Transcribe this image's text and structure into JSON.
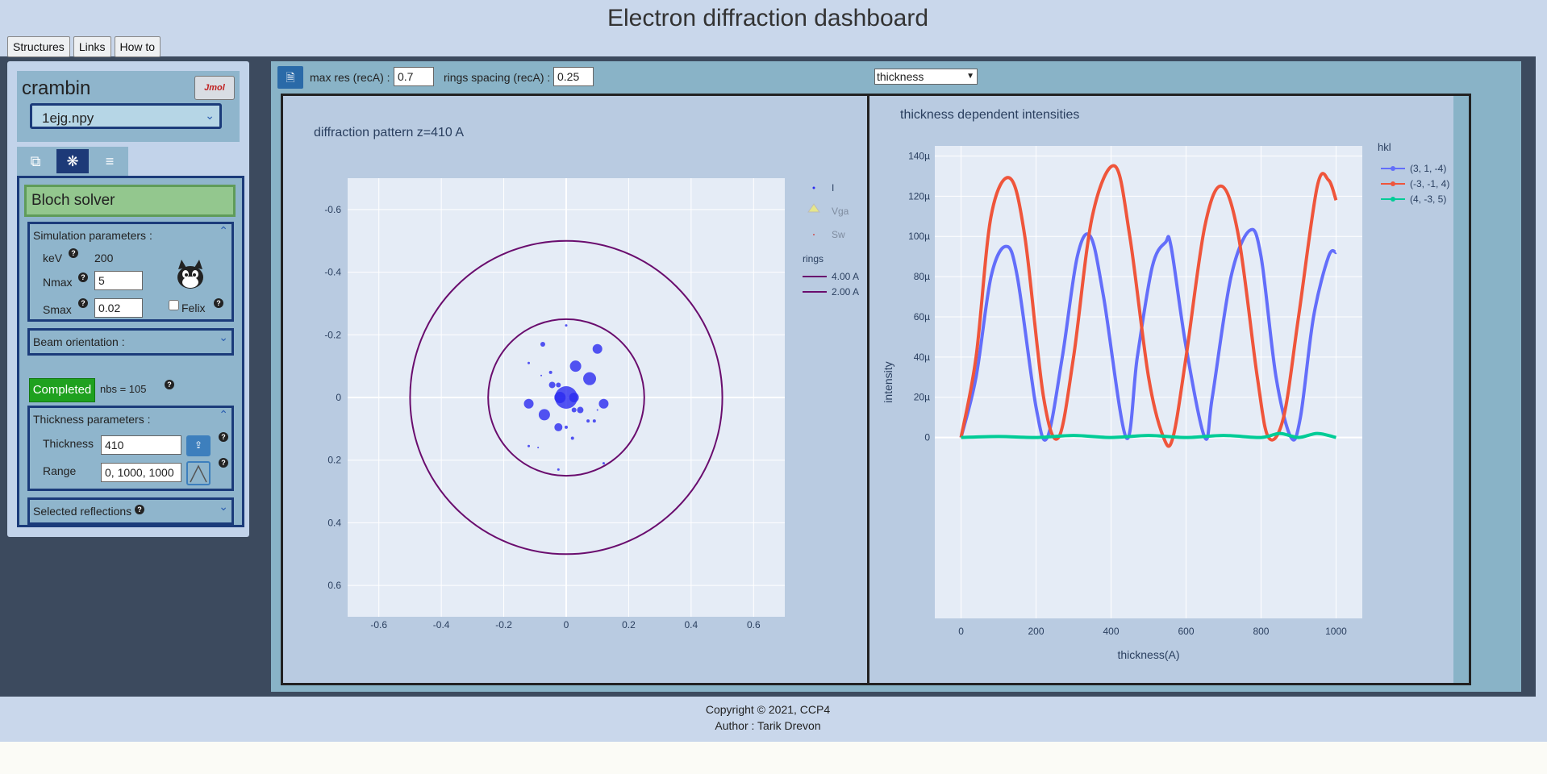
{
  "app": {
    "title": "Electron diffraction dashboard"
  },
  "topnav": [
    "Structures",
    "Links",
    "How to"
  ],
  "sidebar": {
    "structure_name": "crambin",
    "jmol_label": "Jmol",
    "file": "1ejg.npy",
    "tabs": [
      "copy-icon",
      "network-icon",
      "list-icon"
    ],
    "solver_title": "Bloch solver",
    "sim_params": {
      "title": "Simulation parameters :",
      "kev_label": "keV",
      "kev_value": "200",
      "nmax_label": "Nmax",
      "nmax_value": "5",
      "smax_label": "Smax",
      "smax_value": "0.02",
      "felix_label": "Felix"
    },
    "beam_title": "Beam orientation :",
    "status": "Completed",
    "nbs": "nbs = 105",
    "thickness": {
      "title": "Thickness parameters :",
      "thickness_label": "Thickness",
      "thickness_value": "410",
      "range_label": "Range",
      "range_value": "0, 1000, 1000"
    },
    "selected_title": "Selected reflections"
  },
  "toolbar": {
    "maxres_label": "max res (recA) :",
    "maxres_value": "0.7",
    "rings_label": "rings spacing (recA) :",
    "rings_value": "0.25",
    "mode_select": "thickness"
  },
  "chart_data": [
    {
      "type": "scatter",
      "title": "diffraction pattern z=410 A",
      "xlim": [
        -0.7,
        0.7
      ],
      "ylim": [
        0.7,
        -0.7
      ],
      "xticks": [
        "-0.6",
        "-0.4",
        "-0.2",
        "0",
        "0.2",
        "0.4",
        "0.6"
      ],
      "yticks": [
        "-0.6",
        "-0.4",
        "-0.2",
        "0",
        "0.2",
        "0.4",
        "0.6"
      ],
      "legend": [
        "I",
        "Vga",
        "Sw"
      ],
      "rings_title": "rings",
      "rings": [
        {
          "name": "4.00 A",
          "r": 0.25
        },
        {
          "name": "2.00 A",
          "r": 0.5
        }
      ],
      "points": [
        {
          "x": 0.0,
          "y": 0.0,
          "s": 14
        },
        {
          "x": 0.025,
          "y": 0.0,
          "s": 6
        },
        {
          "x": -0.02,
          "y": 0.0,
          "s": 7
        },
        {
          "x": 0.075,
          "y": -0.06,
          "s": 8
        },
        {
          "x": 0.03,
          "y": -0.1,
          "s": 7
        },
        {
          "x": 0.1,
          "y": -0.155,
          "s": 6
        },
        {
          "x": 0.12,
          "y": 0.02,
          "s": 6
        },
        {
          "x": -0.12,
          "y": 0.02,
          "s": 6
        },
        {
          "x": -0.07,
          "y": 0.055,
          "s": 7
        },
        {
          "x": -0.025,
          "y": 0.095,
          "s": 5
        },
        {
          "x": 0.045,
          "y": 0.04,
          "s": 4
        },
        {
          "x": 0.025,
          "y": 0.04,
          "s": 3
        },
        {
          "x": -0.045,
          "y": -0.04,
          "s": 4
        },
        {
          "x": -0.025,
          "y": -0.04,
          "s": 3
        },
        {
          "x": -0.075,
          "y": -0.17,
          "s": 3
        },
        {
          "x": 0.02,
          "y": 0.13,
          "s": 2
        },
        {
          "x": 0.0,
          "y": 0.095,
          "s": 2
        },
        {
          "x": 0.07,
          "y": 0.075,
          "s": 2
        },
        {
          "x": 0.09,
          "y": 0.075,
          "s": 2
        },
        {
          "x": -0.05,
          "y": -0.08,
          "s": 2
        },
        {
          "x": -0.12,
          "y": -0.11,
          "s": 1.5
        },
        {
          "x": 0.0,
          "y": -0.23,
          "s": 1.5
        },
        {
          "x": -0.12,
          "y": 0.155,
          "s": 1.5
        },
        {
          "x": 0.12,
          "y": 0.21,
          "s": 1.5
        },
        {
          "x": -0.025,
          "y": 0.23,
          "s": 1.5
        },
        {
          "x": -0.09,
          "y": 0.16,
          "s": 1
        },
        {
          "x": -0.08,
          "y": -0.07,
          "s": 1
        },
        {
          "x": 0.1,
          "y": 0.04,
          "s": 1
        }
      ]
    },
    {
      "type": "line",
      "title": "thickness dependent intensities",
      "xlabel": "thickness(A)",
      "ylabel": "intensity",
      "xlim": [
        -70,
        1070
      ],
      "ylim": [
        -9e-05,
        0.000145
      ],
      "xticks": [
        0,
        200,
        400,
        600,
        800,
        1000
      ],
      "yticks": [
        {
          "v": 0,
          "t": "0"
        },
        {
          "v": 2e-05,
          "t": "20µ"
        },
        {
          "v": 4e-05,
          "t": "40µ"
        },
        {
          "v": 6e-05,
          "t": "60µ"
        },
        {
          "v": 8e-05,
          "t": "80µ"
        },
        {
          "v": 0.0001,
          "t": "100µ"
        },
        {
          "v": 0.00012,
          "t": "120µ"
        },
        {
          "v": 0.00014,
          "t": "140µ"
        }
      ],
      "legend_title": "hkl",
      "series": [
        {
          "name": "(3, 1, -4)",
          "color": "#636efa",
          "x": [
            0,
            40,
            80,
            120,
            150,
            200,
            230,
            270,
            310,
            345,
            380,
            440,
            470,
            510,
            545,
            560,
            600,
            650,
            670,
            720,
            770,
            800,
            840,
            880,
            905,
            940,
            980,
            1000
          ],
          "y": [
            0.0,
            3e-05,
            8e-05,
            9.5e-05,
            8e-05,
            1.5e-05,
            0.0,
            4e-05,
            9e-05,
            0.0001,
            7e-05,
            0.0,
            4e-05,
            8.5e-05,
            9.7e-05,
            9.5e-05,
            4.5e-05,
            0.0,
            2e-05,
            8e-05,
            0.000103,
            9e-05,
            3e-05,
            0.0,
            1e-05,
            6e-05,
            9e-05,
            9.2e-05
          ]
        },
        {
          "name": "(-3, -1, 4)",
          "color": "#ef553b",
          "x": [
            0,
            40,
            80,
            130,
            170,
            220,
            260,
            300,
            350,
            410,
            450,
            500,
            540,
            565,
            600,
            650,
            695,
            740,
            790,
            820,
            860,
            900,
            950,
            980,
            1000
          ],
          "y": [
            0.0,
            4e-05,
            0.00011,
            0.000129,
            0.0001,
            2e-05,
            0.0,
            4e-05,
            0.00011,
            0.000135,
            0.0001,
            3e-05,
            0.0,
            0.0,
            4e-05,
            0.000105,
            0.000125,
            0.0001,
            3e-05,
            0.0,
            1e-05,
            6e-05,
            0.000125,
            0.000128,
            0.000118
          ]
        },
        {
          "name": "(4, -3, 5)",
          "color": "#00cc96",
          "x": [
            0,
            100,
            200,
            300,
            400,
            500,
            600,
            700,
            800,
            850,
            900,
            950,
            1000
          ],
          "y": [
            0.0,
            5e-07,
            0.0,
            1e-06,
            0.0,
            1e-06,
            0.0,
            1e-06,
            0.0,
            2e-06,
            0.0,
            2e-06,
            0.0
          ]
        }
      ]
    }
  ],
  "footer": {
    "copyright": "Copyright © 2021, CCP4",
    "author": "Author : Tarik Drevon"
  }
}
